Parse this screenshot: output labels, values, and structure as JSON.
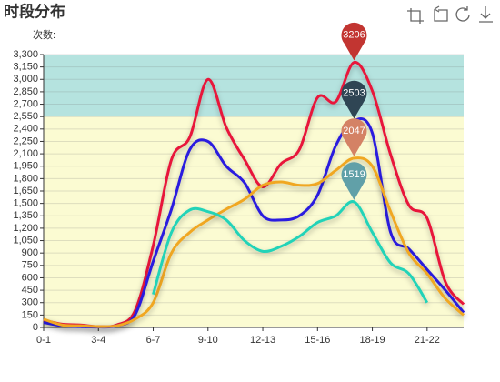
{
  "chart_data": {
    "type": "line",
    "title": "时段分布",
    "y_axis_label": "次数:",
    "categories": [
      "0-1",
      null,
      null,
      "3-4",
      null,
      null,
      "6-7",
      null,
      null,
      "9-10",
      null,
      null,
      "12-13",
      null,
      null,
      "15-16",
      null,
      null,
      "18-19",
      null,
      null,
      "21-22",
      null,
      null
    ],
    "ylim": [
      0,
      3300
    ],
    "yticks": [
      0,
      150,
      300,
      450,
      600,
      750,
      900,
      {
        "value": 1050,
        "label": "1,050"
      },
      {
        "value": 1200,
        "label": "1,200"
      },
      {
        "value": 1350,
        "label": "1,350"
      },
      {
        "value": 1500,
        "label": "1,500"
      },
      {
        "value": 1650,
        "label": "1,650"
      },
      {
        "value": 1800,
        "label": "1,800"
      },
      {
        "value": 1950,
        "label": "1,950"
      },
      {
        "value": 2100,
        "label": "2,100"
      },
      {
        "value": 2250,
        "label": "2,250"
      },
      {
        "value": 2400,
        "label": "2,400"
      },
      {
        "value": 2550,
        "label": "2,550"
      },
      {
        "value": 2700,
        "label": "2,700"
      },
      {
        "value": 2850,
        "label": "2,850"
      },
      {
        "value": 3000,
        "label": "3,000"
      },
      {
        "value": 3150,
        "label": "3,150"
      },
      {
        "value": 3300,
        "label": "3,300"
      }
    ],
    "grid": true,
    "bands": [
      {
        "from": 0,
        "to": 2550,
        "color": "#fbfbd2"
      },
      {
        "from": 2550,
        "to": 3300,
        "color": "#b5e3df"
      }
    ],
    "series": [
      {
        "name": "red",
        "color": "#e8173a",
        "markpoint_color": "#c23531",
        "markpoint_index": 17,
        "values": [
          90,
          40,
          30,
          10,
          30,
          200,
          990,
          2030,
          2300,
          3000,
          2420,
          2030,
          1700,
          1980,
          2150,
          2780,
          2730,
          3206,
          2860,
          2090,
          1480,
          1320,
          550,
          280
        ]
      },
      {
        "name": "blue",
        "color": "#2a1adf",
        "markpoint_color": "#2f4554",
        "markpoint_index": 17,
        "values": [
          60,
          20,
          10,
          5,
          20,
          150,
          800,
          1430,
          2150,
          2250,
          1950,
          1750,
          1350,
          1300,
          1350,
          1600,
          2200,
          2503,
          2350,
          1150,
          950,
          700,
          450,
          180
        ]
      },
      {
        "name": "orange",
        "color": "#f0a720",
        "markpoint_color": "#d48265",
        "markpoint_index": 17,
        "values": [
          100,
          30,
          20,
          10,
          20,
          100,
          300,
          900,
          1150,
          1300,
          1430,
          1550,
          1720,
          1760,
          1720,
          1740,
          1900,
          2047,
          1950,
          1400,
          900,
          650,
          350,
          150
        ]
      },
      {
        "name": "teal",
        "color": "#22d3b8",
        "markpoint_color": "#61a0a8",
        "markpoint_index": 17,
        "values": [
          null,
          null,
          null,
          null,
          null,
          null,
          400,
          1150,
          1420,
          1400,
          1300,
          1050,
          920,
          980,
          1100,
          1270,
          1350,
          1519,
          1150,
          780,
          650,
          300,
          null,
          null
        ]
      }
    ]
  }
}
